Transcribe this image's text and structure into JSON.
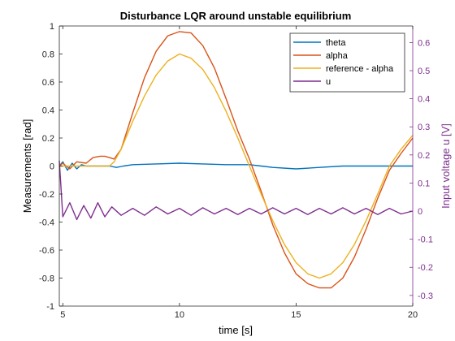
{
  "chart_data": {
    "type": "line",
    "title": "Disturbance LQR around unstable equilibrium",
    "xlabel": "time [s]",
    "ylabel_left": "Measurements [rad]",
    "ylabel_right": "Input voltage u [V]",
    "xlim": [
      4.85,
      20
    ],
    "ylim_left": [
      -1,
      1
    ],
    "ylim_right": [
      -0.338,
      0.659
    ],
    "xticks": [
      "5",
      "10",
      "15",
      "20"
    ],
    "yticks_left": [
      "-1",
      "-0.8",
      "-0.6",
      "-0.4",
      "-0.2",
      "0",
      "0.2",
      "0.4",
      "0.6",
      "0.8",
      "1"
    ],
    "yticks_right": [
      "-0.3",
      "-0.2",
      "-0.1",
      "0",
      "0.1",
      "0.2",
      "0.3",
      "0.4",
      "0.5",
      "0.6"
    ],
    "grid": false,
    "legend_position": "top-right",
    "series": [
      {
        "name": "theta",
        "axis": "left",
        "color": "#0072BD",
        "x": [
          4.85,
          5.0,
          5.2,
          5.4,
          5.6,
          5.8,
          6.0,
          6.5,
          7.0,
          7.3,
          7.6,
          8.0,
          9.0,
          10.0,
          11.0,
          12.0,
          13.0,
          13.5,
          14.0,
          15.0,
          16.0,
          17.0,
          18.0,
          19.0,
          20.0
        ],
        "y": [
          0.0,
          0.03,
          -0.03,
          0.02,
          -0.02,
          0.01,
          0.0,
          0.0,
          0.0,
          -0.01,
          0.0,
          0.01,
          0.015,
          0.02,
          0.015,
          0.01,
          0.01,
          0.0,
          -0.01,
          -0.02,
          -0.01,
          0.0,
          0.0,
          0.0,
          0.0
        ]
      },
      {
        "name": "alpha",
        "axis": "left",
        "color": "#D95319",
        "x": [
          4.85,
          5.0,
          5.3,
          5.6,
          6.0,
          6.3,
          6.6,
          6.8,
          7.0,
          7.2,
          7.5,
          8.0,
          8.5,
          9.0,
          9.5,
          10.0,
          10.5,
          11.0,
          11.5,
          12.0,
          12.5,
          13.0,
          13.5,
          14.0,
          14.5,
          15.0,
          15.5,
          16.0,
          16.5,
          17.0,
          17.5,
          18.0,
          18.5,
          19.0,
          19.5,
          20.0
        ],
        "y": [
          0.0,
          0.02,
          -0.02,
          0.03,
          0.02,
          0.06,
          0.07,
          0.07,
          0.06,
          0.05,
          0.12,
          0.38,
          0.63,
          0.82,
          0.93,
          0.96,
          0.95,
          0.86,
          0.7,
          0.48,
          0.25,
          0.05,
          -0.18,
          -0.42,
          -0.62,
          -0.77,
          -0.84,
          -0.87,
          -0.87,
          -0.8,
          -0.65,
          -0.45,
          -0.23,
          -0.03,
          0.09,
          0.2
        ]
      },
      {
        "name": "reference - alpha",
        "axis": "left",
        "color": "#EDB120",
        "x": [
          4.85,
          5.5,
          6.0,
          6.5,
          7.0,
          7.2,
          7.5,
          8.0,
          8.5,
          9.0,
          9.5,
          10.0,
          10.5,
          11.0,
          11.5,
          12.0,
          12.5,
          13.0,
          13.5,
          14.0,
          14.5,
          15.0,
          15.5,
          16.0,
          16.5,
          17.0,
          17.5,
          18.0,
          18.5,
          19.0,
          19.5,
          20.0
        ],
        "y": [
          0.0,
          0.0,
          0.0,
          0.0,
          0.0,
          0.03,
          0.12,
          0.32,
          0.5,
          0.65,
          0.75,
          0.8,
          0.77,
          0.69,
          0.56,
          0.39,
          0.2,
          0.0,
          -0.2,
          -0.39,
          -0.56,
          -0.69,
          -0.77,
          -0.8,
          -0.77,
          -0.69,
          -0.56,
          -0.39,
          -0.2,
          0.0,
          0.12,
          0.22
        ]
      },
      {
        "name": "u",
        "axis": "right",
        "color": "#7E2F8E",
        "x": [
          4.85,
          5.0,
          5.3,
          5.6,
          5.9,
          6.2,
          6.5,
          6.8,
          7.1,
          7.5,
          8.0,
          8.5,
          9.0,
          9.5,
          10.0,
          10.5,
          11.0,
          11.5,
          12.0,
          12.5,
          13.0,
          13.5,
          14.0,
          14.5,
          15.0,
          15.5,
          16.0,
          16.5,
          17.0,
          17.5,
          18.0,
          18.5,
          19.0,
          19.5,
          20.0
        ],
        "y": [
          0.18,
          -0.02,
          0.03,
          -0.03,
          0.02,
          -0.025,
          0.03,
          -0.02,
          0.015,
          -0.015,
          0.01,
          -0.015,
          0.015,
          -0.01,
          0.01,
          -0.015,
          0.012,
          -0.01,
          0.01,
          -0.012,
          0.01,
          -0.01,
          0.012,
          -0.01,
          0.01,
          -0.012,
          0.01,
          -0.01,
          0.012,
          -0.01,
          0.01,
          -0.012,
          0.01,
          -0.01,
          0.0
        ]
      }
    ]
  }
}
